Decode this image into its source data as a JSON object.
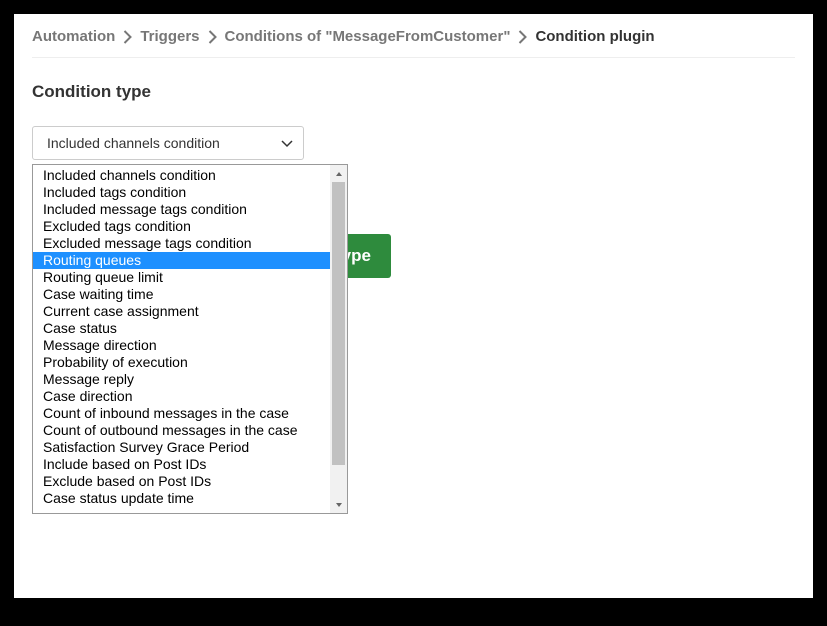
{
  "breadcrumb": {
    "items": [
      {
        "label": "Automation",
        "active": false
      },
      {
        "label": "Triggers",
        "active": false
      },
      {
        "label": "Conditions of \"MessageFromCustomer\"",
        "active": false
      },
      {
        "label": "Condition plugin",
        "active": true
      }
    ]
  },
  "section_title": "Condition type",
  "select": {
    "selected_label": "Included channels condition",
    "highlighted_index": 5,
    "options": [
      "Included channels condition",
      "Included tags condition",
      "Included message tags condition",
      "Excluded tags condition",
      "Excluded message tags condition",
      "Routing queues",
      "Routing queue limit",
      "Case waiting time",
      "Current case assignment",
      "Case status",
      "Message direction",
      "Probability of execution",
      "Message reply",
      "Case direction",
      "Count of inbound messages in the case",
      "Count of outbound messages in the case",
      "Satisfaction Survey Grace Period",
      "Include based on Post IDs",
      "Exclude based on Post IDs",
      "Case status update time"
    ]
  },
  "primary_button_label": "type",
  "colors": {
    "breadcrumb_inactive": "#777777",
    "breadcrumb_active": "#333333",
    "option_highlight_bg": "#1e90ff",
    "option_highlight_fg": "#ffffff",
    "primary_button_bg": "#2e8b3d",
    "primary_button_fg": "#ffffff",
    "border": "#cccccc",
    "dropdown_border": "#999999",
    "scrollbar_track": "#f1f1f1",
    "scrollbar_thumb": "#c1c1c1"
  }
}
